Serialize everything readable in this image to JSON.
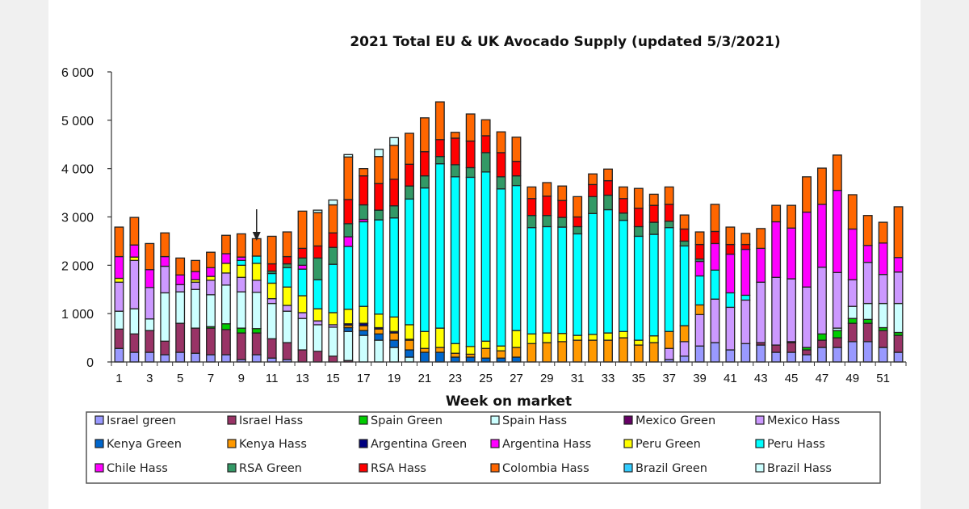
{
  "chart_data": {
    "type": "bar",
    "stacked": true,
    "title": "2021 Total EU & UK Avocado Supply (updated 5/3/2021)",
    "xlabel": "Week on market",
    "ylabel": "",
    "ylim": [
      0,
      6000
    ],
    "yticks": [
      0,
      1000,
      2000,
      3000,
      4000,
      5000,
      6000
    ],
    "ytick_labels": [
      "0",
      "1 000",
      "2 000",
      "3 000",
      "4 000",
      "5 000",
      "6 000"
    ],
    "xtick_labels": [
      "1",
      "3",
      "5",
      "7",
      "9",
      "11",
      "13",
      "15",
      "17",
      "19",
      "21",
      "23",
      "25",
      "27",
      "29",
      "31",
      "33",
      "35",
      "37",
      "39",
      "41",
      "43",
      "45",
      "47",
      "49",
      "51"
    ],
    "xtick_values": [
      1,
      3,
      5,
      7,
      9,
      11,
      13,
      15,
      17,
      19,
      21,
      23,
      25,
      27,
      29,
      31,
      33,
      35,
      37,
      39,
      41,
      43,
      45,
      47,
      49,
      51
    ],
    "annotation": {
      "type": "arrow",
      "week": 10
    },
    "grid": false,
    "legend_position": "bottom",
    "categories": [
      1,
      2,
      3,
      4,
      5,
      6,
      7,
      8,
      9,
      10,
      11,
      12,
      13,
      14,
      15,
      16,
      17,
      18,
      19,
      20,
      21,
      22,
      23,
      24,
      25,
      26,
      27,
      28,
      29,
      30,
      31,
      32,
      33,
      34,
      35,
      36,
      37,
      38,
      39,
      40,
      41,
      42,
      43,
      44,
      45,
      46,
      47,
      48,
      49,
      50,
      51,
      52
    ],
    "series": [
      {
        "name": "Israel green",
        "color": "#9999ff",
        "values": [
          280,
          200,
          200,
          150,
          200,
          180,
          150,
          150,
          50,
          150,
          80,
          50,
          0,
          0,
          0,
          0,
          0,
          0,
          0,
          0,
          0,
          0,
          0,
          0,
          0,
          0,
          0,
          0,
          0,
          0,
          0,
          0,
          0,
          0,
          0,
          0,
          50,
          120,
          330,
          400,
          250,
          380,
          350,
          200,
          200,
          150,
          300,
          300,
          420,
          420,
          300,
          200
        ]
      },
      {
        "name": "Israel Hass",
        "color": "#993366",
        "values": [
          400,
          380,
          450,
          280,
          600,
          520,
          550,
          520,
          550,
          450,
          400,
          350,
          250,
          220,
          120,
          30,
          0,
          0,
          0,
          0,
          0,
          0,
          0,
          0,
          0,
          0,
          0,
          0,
          0,
          0,
          0,
          0,
          0,
          0,
          0,
          0,
          0,
          0,
          0,
          0,
          0,
          0,
          50,
          150,
          200,
          100,
          150,
          200,
          380,
          380,
          350,
          350
        ]
      },
      {
        "name": "Spain Green",
        "color": "#00cc00",
        "values": [
          0,
          0,
          0,
          0,
          0,
          0,
          30,
          120,
          100,
          90,
          0,
          0,
          0,
          0,
          0,
          0,
          0,
          0,
          0,
          0,
          0,
          0,
          0,
          0,
          0,
          0,
          0,
          0,
          0,
          0,
          0,
          0,
          0,
          0,
          0,
          0,
          0,
          0,
          0,
          0,
          0,
          0,
          0,
          0,
          20,
          50,
          130,
          150,
          100,
          80,
          60,
          60
        ]
      },
      {
        "name": "Spain Hass",
        "color": "#ccffff",
        "values": [
          370,
          520,
          240,
          1000,
          650,
          800,
          660,
          800,
          750,
          750,
          730,
          650,
          650,
          550,
          600,
          600,
          550,
          450,
          300,
          100,
          0,
          0,
          0,
          0,
          0,
          0,
          0,
          0,
          0,
          0,
          0,
          0,
          0,
          0,
          0,
          0,
          0,
          0,
          0,
          0,
          0,
          0,
          0,
          0,
          0,
          0,
          0,
          50,
          250,
          330,
          500,
          600
        ]
      },
      {
        "name": "Mexico Green",
        "color": "#660066",
        "values": [
          0,
          0,
          0,
          0,
          0,
          0,
          0,
          0,
          0,
          0,
          0,
          0,
          0,
          0,
          0,
          0,
          0,
          0,
          0,
          0,
          0,
          0,
          0,
          0,
          0,
          0,
          0,
          0,
          0,
          0,
          0,
          0,
          0,
          0,
          0,
          0,
          0,
          0,
          0,
          0,
          0,
          0,
          0,
          0,
          0,
          0,
          0,
          0,
          0,
          0,
          0,
          0
        ]
      },
      {
        "name": "Mexico Hass",
        "color": "#cc99ff",
        "values": [
          600,
          1000,
          650,
          550,
          150,
          150,
          300,
          250,
          300,
          250,
          100,
          120,
          120,
          80,
          50,
          0,
          0,
          0,
          0,
          0,
          0,
          0,
          0,
          0,
          0,
          0,
          0,
          0,
          0,
          0,
          0,
          0,
          0,
          0,
          0,
          0,
          230,
          300,
          650,
          900,
          880,
          900,
          1250,
          1400,
          1300,
          1250,
          1380,
          1150,
          550,
          850,
          600,
          650
        ]
      },
      {
        "name": "Kenya Green",
        "color": "#0066cc",
        "values": [
          0,
          0,
          0,
          0,
          0,
          0,
          0,
          0,
          0,
          0,
          0,
          0,
          0,
          0,
          0,
          80,
          100,
          130,
          150,
          150,
          200,
          200,
          100,
          100,
          80,
          80,
          100,
          0,
          0,
          0,
          0,
          0,
          0,
          0,
          0,
          0,
          0,
          0,
          0,
          0,
          0,
          0,
          0,
          0,
          0,
          0,
          0,
          0,
          0,
          0,
          0,
          0
        ]
      },
      {
        "name": "Kenya Hass",
        "color": "#ff9900",
        "values": [
          0,
          0,
          0,
          0,
          0,
          0,
          0,
          0,
          0,
          0,
          0,
          0,
          0,
          0,
          0,
          50,
          100,
          100,
          150,
          200,
          80,
          100,
          80,
          60,
          200,
          150,
          200,
          380,
          400,
          420,
          450,
          450,
          450,
          500,
          350,
          400,
          350,
          330,
          200,
          0,
          0,
          0,
          0,
          0,
          0,
          0,
          0,
          0,
          0,
          0,
          0,
          0
        ]
      },
      {
        "name": "Argentina Green",
        "color": "#000080",
        "values": [
          0,
          0,
          0,
          0,
          0,
          0,
          0,
          0,
          0,
          0,
          0,
          0,
          0,
          0,
          0,
          30,
          50,
          30,
          30,
          20,
          0,
          0,
          0,
          0,
          0,
          0,
          0,
          0,
          0,
          0,
          0,
          0,
          0,
          0,
          0,
          0,
          0,
          0,
          0,
          0,
          0,
          0,
          0,
          0,
          0,
          0,
          0,
          0,
          0,
          0,
          0,
          0
        ]
      },
      {
        "name": "Argentina Hass",
        "color": "#ff00ff",
        "values": [
          0,
          0,
          0,
          0,
          0,
          0,
          0,
          0,
          0,
          0,
          0,
          0,
          0,
          0,
          0,
          0,
          0,
          0,
          0,
          0,
          0,
          0,
          0,
          0,
          0,
          0,
          0,
          0,
          0,
          0,
          0,
          0,
          0,
          0,
          0,
          0,
          0,
          0,
          0,
          0,
          0,
          0,
          0,
          0,
          0,
          0,
          0,
          0,
          0,
          0,
          0,
          0
        ]
      },
      {
        "name": "Peru Green",
        "color": "#ffff00",
        "values": [
          80,
          70,
          0,
          0,
          0,
          50,
          80,
          200,
          250,
          350,
          320,
          380,
          350,
          250,
          250,
          300,
          350,
          280,
          300,
          300,
          350,
          400,
          200,
          160,
          150,
          100,
          350,
          200,
          200,
          170,
          100,
          120,
          150,
          130,
          100,
          140,
          0,
          0,
          0,
          0,
          0,
          0,
          0,
          0,
          0,
          0,
          0,
          0,
          0,
          0,
          0,
          0
        ]
      },
      {
        "name": "Peru Hass",
        "color": "#00ffff",
        "values": [
          0,
          0,
          0,
          0,
          0,
          0,
          0,
          0,
          100,
          150,
          200,
          400,
          550,
          600,
          1000,
          1300,
          1750,
          1950,
          2050,
          2600,
          2970,
          3400,
          3450,
          3500,
          3500,
          3250,
          3000,
          2200,
          2200,
          2200,
          2100,
          2500,
          2550,
          2300,
          2150,
          2100,
          2150,
          1650,
          600,
          600,
          300,
          100,
          0,
          0,
          0,
          0,
          0,
          0,
          0,
          0,
          0,
          0
        ]
      },
      {
        "name": "Chile Hass",
        "color": "#ff00ff",
        "values": [
          450,
          250,
          370,
          200,
          200,
          170,
          180,
          200,
          70,
          0,
          0,
          0,
          80,
          0,
          0,
          200,
          50,
          0,
          0,
          0,
          0,
          0,
          0,
          0,
          0,
          0,
          0,
          0,
          0,
          0,
          0,
          0,
          0,
          0,
          0,
          0,
          0,
          0,
          300,
          550,
          800,
          950,
          700,
          1150,
          1050,
          1550,
          1300,
          1700,
          1050,
          350,
          650,
          300
        ]
      },
      {
        "name": "RSA Green",
        "color": "#339966",
        "values": [
          0,
          0,
          0,
          0,
          0,
          0,
          0,
          0,
          0,
          0,
          50,
          80,
          150,
          450,
          350,
          270,
          300,
          200,
          250,
          270,
          250,
          150,
          250,
          200,
          400,
          250,
          200,
          250,
          230,
          200,
          150,
          350,
          300,
          150,
          200,
          250,
          130,
          100,
          50,
          0,
          0,
          0,
          0,
          0,
          0,
          0,
          0,
          0,
          0,
          0,
          0,
          0
        ]
      },
      {
        "name": "RSA Hass",
        "color": "#ff0000",
        "values": [
          0,
          0,
          0,
          0,
          0,
          0,
          0,
          0,
          0,
          0,
          150,
          150,
          200,
          250,
          300,
          500,
          600,
          550,
          550,
          450,
          500,
          350,
          550,
          550,
          350,
          500,
          300,
          350,
          400,
          350,
          200,
          250,
          300,
          300,
          380,
          350,
          350,
          250,
          300,
          250,
          200,
          100,
          0,
          0,
          0,
          0,
          0,
          0,
          0,
          0,
          0,
          0
        ]
      },
      {
        "name": "Colombia Hass",
        "color": "#ff6600",
        "values": [
          610,
          570,
          540,
          490,
          350,
          230,
          320,
          380,
          480,
          360,
          570,
          510,
          770,
          690,
          580,
          880,
          150,
          560,
          700,
          640,
          700,
          780,
          120,
          560,
          330,
          430,
          500,
          240,
          280,
          300,
          420,
          220,
          240,
          240,
          410,
          230,
          360,
          290,
          260,
          560,
          360,
          230,
          410,
          340,
          470,
          730,
          750,
          730,
          710,
          620,
          430,
          1050
        ]
      },
      {
        "name": "Brazil Green",
        "color": "#33ccff",
        "values": [
          0,
          0,
          0,
          0,
          0,
          0,
          0,
          0,
          0,
          0,
          0,
          0,
          0,
          0,
          0,
          0,
          0,
          0,
          0,
          0,
          0,
          0,
          0,
          0,
          0,
          0,
          0,
          0,
          0,
          0,
          0,
          0,
          0,
          0,
          0,
          0,
          0,
          0,
          0,
          0,
          0,
          0,
          0,
          0,
          0,
          0,
          0,
          0,
          0,
          0,
          0,
          0
        ]
      },
      {
        "name": "Brazil Hass",
        "color": "#ccffff",
        "values": [
          0,
          0,
          0,
          0,
          0,
          0,
          0,
          0,
          0,
          0,
          0,
          0,
          0,
          50,
          100,
          50,
          0,
          150,
          160,
          0,
          0,
          0,
          0,
          0,
          0,
          0,
          0,
          0,
          0,
          0,
          0,
          0,
          0,
          0,
          0,
          0,
          0,
          0,
          0,
          0,
          0,
          0,
          0,
          0,
          0,
          0,
          0,
          0,
          0,
          0,
          0,
          0
        ]
      }
    ],
    "legend": [
      [
        "Israel green",
        "Israel Hass",
        "Spain Green",
        "Spain Hass",
        "Mexico Green",
        "Mexico Hass"
      ],
      [
        "Kenya Green",
        "Kenya Hass",
        "Argentina Green",
        "Argentina Hass",
        "Peru Green",
        "Peru Hass"
      ],
      [
        "Chile Hass",
        "RSA Green",
        "RSA Hass",
        "Colombia Hass",
        "Brazil Green",
        "Brazil Hass"
      ]
    ],
    "bar_outline_color": "#222222"
  }
}
